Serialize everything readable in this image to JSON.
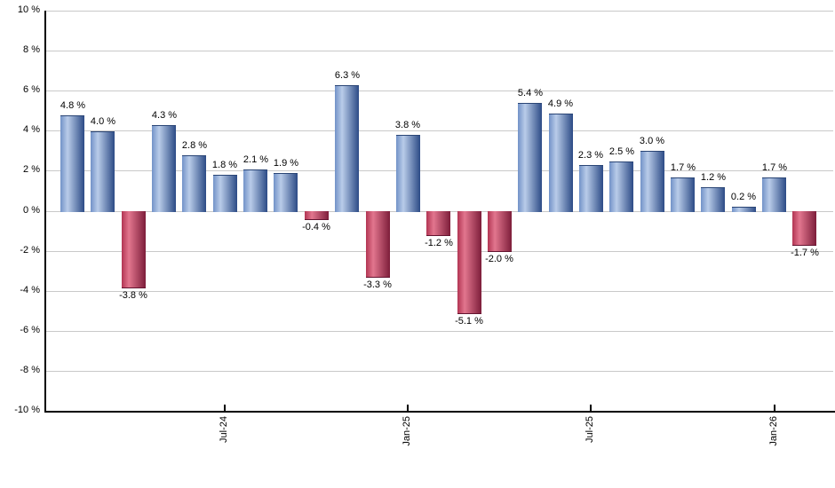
{
  "chart_data": {
    "type": "bar",
    "title": "",
    "xlabel": "",
    "ylabel": "",
    "ylim": [
      -10,
      10
    ],
    "grid": true,
    "legend": "none",
    "values": [
      4.8,
      4.0,
      -3.8,
      4.3,
      2.8,
      1.8,
      2.1,
      1.9,
      -0.4,
      6.3,
      -3.3,
      3.8,
      -1.2,
      -5.1,
      -2.0,
      5.4,
      4.9,
      2.3,
      2.5,
      3.0,
      1.7,
      1.2,
      0.2,
      1.7,
      -1.7
    ],
    "bar_labels": [
      "4.8 %",
      "4.0 %",
      "-3.8 %",
      "4.3 %",
      "2.8 %",
      "1.8 %",
      "2.1 %",
      "1.9 %",
      "-0.4 %",
      "6.3 %",
      "-3.3 %",
      "3.8 %",
      "-1.2 %",
      "-5.1 %",
      "-2.0 %",
      "5.4 %",
      "4.9 %",
      "2.3 %",
      "2.5 %",
      "3.0 %",
      "1.7 %",
      "1.2 %",
      "0.2 %",
      "1.7 %",
      "-1.7 %"
    ],
    "y_ticks": [
      10,
      8,
      6,
      4,
      2,
      0,
      -2,
      -4,
      -6,
      -8,
      -10
    ],
    "y_tick_labels": [
      "10 %",
      "8 %",
      "6 %",
      "4 %",
      "2 %",
      "0 %",
      "-2 %",
      "-4 %",
      "-6 %",
      "-8 %",
      "-10 %"
    ],
    "x_ticks": [
      {
        "label": "Jul-24",
        "bar_index": 5
      },
      {
        "label": "Jan-25",
        "bar_index": 11
      },
      {
        "label": "Jul-25",
        "bar_index": 17
      },
      {
        "label": "Jan-26",
        "bar_index": 23
      }
    ],
    "colors": {
      "positive_gradient": [
        "#7292c8",
        "#b9cce9",
        "#2c4b86"
      ],
      "negative_gradient": [
        "#b23553",
        "#e2768e",
        "#7d1d3a"
      ],
      "gridline": "#c9c9c9",
      "axis": "#000000",
      "text": "#000000",
      "background": "#ffffff"
    }
  }
}
